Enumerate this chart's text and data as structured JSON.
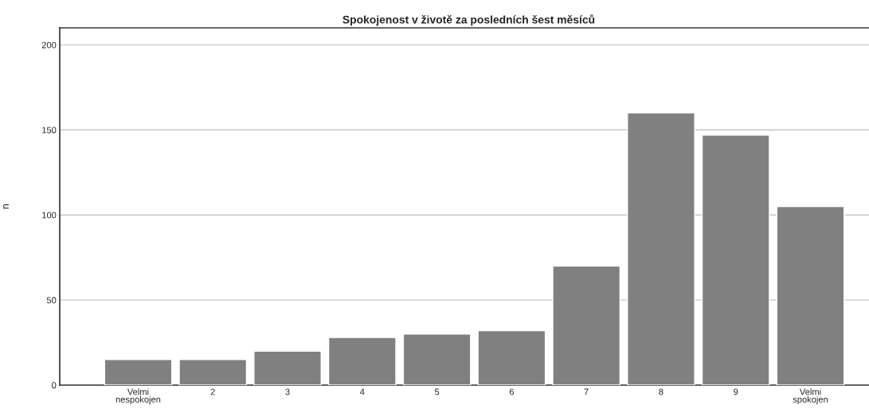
{
  "chart_data": {
    "type": "bar",
    "title": "Spokojenost v životě za posledních šest měsíců",
    "ylabel": "n",
    "categories": [
      "Velmi\nnespokojen",
      "2",
      "3",
      "4",
      "5",
      "6",
      "7",
      "8",
      "9",
      "Velmi\nspokojen"
    ],
    "values": [
      15,
      15,
      20,
      28,
      30,
      32,
      70,
      160,
      147,
      105
    ],
    "color": "#808080",
    "ylim": [
      0,
      210
    ],
    "yticks": [
      0,
      50,
      100,
      150,
      200
    ],
    "grid": "y",
    "legend": false
  }
}
